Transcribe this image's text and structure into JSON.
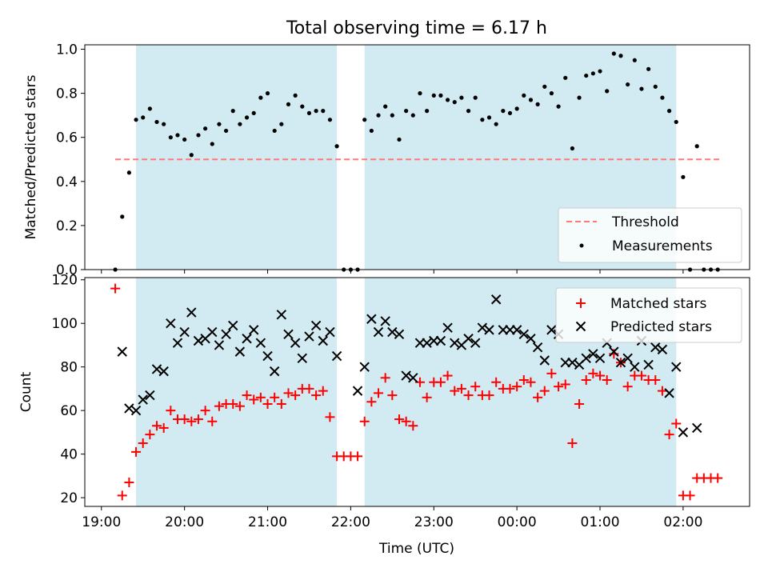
{
  "chart_data": [
    {
      "type": "scatter",
      "title": "Total observing time = 6.17 h",
      "xlabel": "",
      "ylabel": "Matched/Predicted stars",
      "xlim": [
        "18:48",
        "02:48"
      ],
      "ylim": [
        0,
        1.02
      ],
      "yticks": [
        "0.0",
        "0.2",
        "0.4",
        "0.6",
        "0.8",
        "1.0"
      ],
      "xticks": [
        "19:00",
        "20:00",
        "21:00",
        "22:00",
        "23:00",
        "00:00",
        "01:00",
        "02:00"
      ],
      "shaded_intervals": [
        [
          "19:25",
          "21:50"
        ],
        [
          "22:10",
          "01:55"
        ]
      ],
      "shade_color": "#add8e6",
      "threshold": {
        "name": "Threshold",
        "value": 0.5,
        "x_start": "19:10",
        "x_end": "02:27",
        "color": "#ff7777"
      },
      "legend": {
        "position": "lower-right",
        "entries": [
          "Threshold",
          "Measurements"
        ]
      },
      "series": [
        {
          "name": "Measurements",
          "color": "#000000",
          "x": [
            "19:10",
            "19:15",
            "19:20",
            "19:25",
            "19:30",
            "19:35",
            "19:40",
            "19:45",
            "19:50",
            "19:55",
            "20:00",
            "20:05",
            "20:10",
            "20:15",
            "20:20",
            "20:25",
            "20:30",
            "20:35",
            "20:40",
            "20:45",
            "20:50",
            "20:55",
            "21:00",
            "21:05",
            "21:10",
            "21:15",
            "21:20",
            "21:25",
            "21:30",
            "21:35",
            "21:40",
            "21:45",
            "21:50",
            "21:55",
            "22:00",
            "22:05",
            "22:10",
            "22:15",
            "22:20",
            "22:25",
            "22:30",
            "22:35",
            "22:40",
            "22:45",
            "22:50",
            "22:55",
            "23:00",
            "23:05",
            "23:10",
            "23:15",
            "23:20",
            "23:25",
            "23:30",
            "23:35",
            "23:40",
            "23:45",
            "23:50",
            "23:55",
            "00:00",
            "00:05",
            "00:10",
            "00:15",
            "00:20",
            "00:25",
            "00:30",
            "00:35",
            "00:40",
            "00:45",
            "00:50",
            "00:55",
            "01:00",
            "01:05",
            "01:10",
            "01:15",
            "01:20",
            "01:25",
            "01:30",
            "01:35",
            "01:40",
            "01:45",
            "01:50",
            "01:55",
            "02:00",
            "02:05",
            "02:10",
            "02:15",
            "02:20",
            "02:25"
          ],
          "y": [
            0.0,
            0.24,
            0.44,
            0.68,
            0.69,
            0.73,
            0.67,
            0.66,
            0.6,
            0.61,
            0.59,
            0.52,
            0.61,
            0.64,
            0.57,
            0.66,
            0.63,
            0.72,
            0.66,
            0.69,
            0.71,
            0.78,
            0.8,
            0.63,
            0.66,
            0.75,
            0.79,
            0.74,
            0.71,
            0.72,
            0.72,
            0.68,
            0.56,
            0.0,
            0.0,
            0.0,
            0.68,
            0.63,
            0.7,
            0.74,
            0.7,
            0.59,
            0.72,
            0.7,
            0.8,
            0.72,
            0.79,
            0.79,
            0.77,
            0.76,
            0.78,
            0.72,
            0.78,
            0.68,
            0.69,
            0.66,
            0.72,
            0.71,
            0.73,
            0.79,
            0.77,
            0.75,
            0.83,
            0.8,
            0.74,
            0.87,
            0.55,
            0.78,
            0.88,
            0.89,
            0.9,
            0.81,
            0.98,
            0.97,
            0.84,
            0.95,
            0.82,
            0.91,
            0.83,
            0.78,
            0.72,
            0.67,
            0.42,
            0.0,
            0.56,
            0.0,
            0.0,
            0.0
          ]
        }
      ]
    },
    {
      "type": "scatter",
      "title": "",
      "xlabel": "Time (UTC)",
      "ylabel": "Count",
      "xlim": [
        "18:48",
        "02:48"
      ],
      "ylim": [
        16,
        121
      ],
      "yticks": [
        "20",
        "40",
        "60",
        "80",
        "100",
        "120"
      ],
      "xticks": [
        "19:00",
        "20:00",
        "21:00",
        "22:00",
        "23:00",
        "00:00",
        "01:00",
        "02:00"
      ],
      "shaded_intervals": [
        [
          "19:25",
          "21:50"
        ],
        [
          "22:10",
          "01:55"
        ]
      ],
      "shade_color": "#add8e6",
      "legend": {
        "position": "upper-right",
        "entries": [
          "Matched stars",
          "Predicted stars"
        ]
      },
      "series": [
        {
          "name": "Matched stars",
          "marker": "plus",
          "color": "#ff0000",
          "x": [
            "19:10",
            "19:15",
            "19:20",
            "19:25",
            "19:30",
            "19:35",
            "19:40",
            "19:45",
            "19:50",
            "19:55",
            "20:00",
            "20:05",
            "20:10",
            "20:15",
            "20:20",
            "20:25",
            "20:30",
            "20:35",
            "20:40",
            "20:45",
            "20:50",
            "20:55",
            "21:00",
            "21:05",
            "21:10",
            "21:15",
            "21:20",
            "21:25",
            "21:30",
            "21:35",
            "21:40",
            "21:45",
            "21:50",
            "21:55",
            "22:00",
            "22:05",
            "22:10",
            "22:15",
            "22:20",
            "22:25",
            "22:30",
            "22:35",
            "22:40",
            "22:45",
            "22:50",
            "22:55",
            "23:00",
            "23:05",
            "23:10",
            "23:15",
            "23:20",
            "23:25",
            "23:30",
            "23:35",
            "23:40",
            "23:45",
            "23:50",
            "23:55",
            "00:00",
            "00:05",
            "00:10",
            "00:15",
            "00:20",
            "00:25",
            "00:30",
            "00:35",
            "00:40",
            "00:45",
            "00:50",
            "00:55",
            "01:00",
            "01:05",
            "01:10",
            "01:15",
            "01:20",
            "01:25",
            "01:30",
            "01:35",
            "01:40",
            "01:45",
            "01:50",
            "01:55",
            "02:00",
            "02:05",
            "02:10",
            "02:15",
            "02:20",
            "02:25"
          ],
          "y": [
            116,
            21,
            27,
            41,
            45,
            49,
            53,
            52,
            60,
            56,
            56,
            55,
            56,
            60,
            55,
            62,
            63,
            63,
            62,
            67,
            65,
            66,
            63,
            66,
            63,
            68,
            67,
            70,
            70,
            67,
            69,
            57,
            39,
            39,
            39,
            39,
            55,
            64,
            68,
            75,
            67,
            56,
            55,
            53,
            73,
            66,
            73,
            73,
            76,
            69,
            70,
            67,
            71,
            67,
            67,
            73,
            70,
            70,
            71,
            74,
            73,
            66,
            69,
            77,
            71,
            72,
            45,
            63,
            74,
            77,
            76,
            74,
            86,
            82,
            71,
            76,
            76,
            74,
            74,
            69,
            49,
            54,
            21,
            21,
            29,
            29,
            29,
            29
          ]
        },
        {
          "name": "Predicted stars",
          "marker": "x",
          "color": "#000000",
          "x": [
            "19:15",
            "19:20",
            "19:25",
            "19:30",
            "19:35",
            "19:40",
            "19:45",
            "19:50",
            "19:55",
            "20:00",
            "20:05",
            "20:10",
            "20:15",
            "20:20",
            "20:25",
            "20:30",
            "20:35",
            "20:40",
            "20:45",
            "20:50",
            "20:55",
            "21:00",
            "21:05",
            "21:10",
            "21:15",
            "21:20",
            "21:25",
            "21:30",
            "21:35",
            "21:40",
            "21:45",
            "21:50",
            "22:05",
            "22:10",
            "22:15",
            "22:20",
            "22:25",
            "22:30",
            "22:35",
            "22:40",
            "22:45",
            "22:50",
            "22:55",
            "23:00",
            "23:05",
            "23:10",
            "23:15",
            "23:20",
            "23:25",
            "23:30",
            "23:35",
            "23:40",
            "23:45",
            "23:50",
            "23:55",
            "00:00",
            "00:05",
            "00:10",
            "00:15",
            "00:20",
            "00:25",
            "00:30",
            "00:35",
            "00:40",
            "00:45",
            "00:50",
            "00:55",
            "01:00",
            "01:05",
            "01:10",
            "01:15",
            "01:20",
            "01:25",
            "01:30",
            "01:35",
            "01:40",
            "01:45",
            "01:50",
            "01:55",
            "02:00",
            "02:10"
          ],
          "y": [
            87,
            61,
            60,
            65,
            67,
            79,
            78,
            100,
            91,
            96,
            105,
            92,
            93,
            96,
            90,
            95,
            99,
            87,
            93,
            97,
            91,
            85,
            78,
            104,
            95,
            91,
            84,
            94,
            99,
            92,
            96,
            85,
            69,
            80,
            102,
            96,
            101,
            96,
            95,
            76,
            75,
            91,
            91,
            92,
            92,
            98,
            91,
            90,
            93,
            91,
            98,
            97,
            111,
            97,
            97,
            97,
            95,
            93,
            89,
            83,
            97,
            95,
            82,
            82,
            81,
            84,
            86,
            84,
            91,
            87,
            82,
            84,
            80,
            92,
            81,
            89,
            88,
            68,
            80,
            50,
            52
          ]
        }
      ]
    }
  ]
}
